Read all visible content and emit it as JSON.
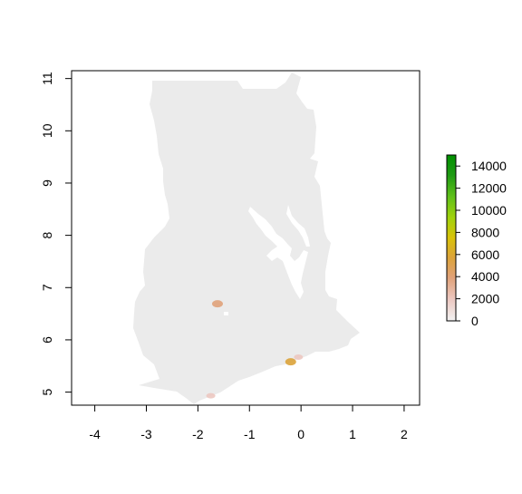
{
  "chart_data": {
    "type": "heatmap",
    "title": "",
    "xlabel": "",
    "ylabel": "",
    "xlim": [
      -4.45,
      2.3
    ],
    "ylim": [
      4.75,
      11.15
    ],
    "x_ticks": [
      "-4",
      "-3",
      "-2",
      "-1",
      "0",
      "1",
      "2"
    ],
    "y_ticks": [
      "5",
      "6",
      "7",
      "8",
      "9",
      "10",
      "11"
    ],
    "background_value_color": "#ebebeb",
    "colorbar": {
      "min": 0,
      "max": 15000,
      "ticks": [
        "0",
        "2000",
        "4000",
        "6000",
        "8000",
        "10000",
        "12000",
        "14000"
      ],
      "colors": [
        "#f2f2f2",
        "#ecc8c1",
        "#e0a27a",
        "#dca33a",
        "#d9c20a",
        "#a2d20b",
        "#5fc01a",
        "#1f9a14",
        "#009000"
      ]
    },
    "hotspots": [
      {
        "lon": -1.62,
        "lat": 6.69,
        "value": 4200
      },
      {
        "lon": -0.2,
        "lat": 5.58,
        "value": 5200
      },
      {
        "lon": -0.05,
        "lat": 5.67,
        "value": 1500
      },
      {
        "lon": -1.75,
        "lat": 4.93,
        "value": 1200
      }
    ]
  }
}
